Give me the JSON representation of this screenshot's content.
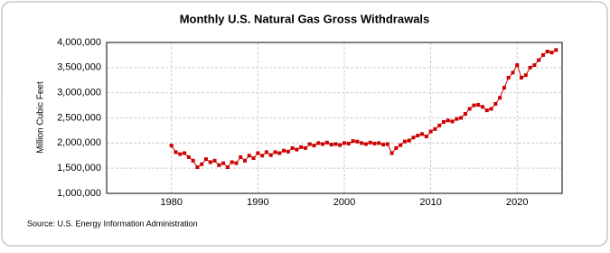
{
  "chart_data": {
    "type": "line",
    "title": "Monthly U.S. Natural Gas Gross Withdrawals",
    "y_label": "Million Cubic Feet",
    "source": "Source: U.S. Energy Information Administration",
    "x": [
      1980,
      1980.5,
      1981,
      1981.5,
      1982,
      1982.5,
      1983,
      1983.5,
      1984,
      1984.5,
      1985,
      1985.5,
      1986,
      1986.5,
      1987,
      1987.5,
      1988,
      1988.5,
      1989,
      1989.5,
      1990,
      1990.5,
      1991,
      1991.5,
      1992,
      1992.5,
      1993,
      1993.5,
      1994,
      1994.5,
      1995,
      1995.5,
      1996,
      1996.5,
      1997,
      1997.5,
      1998,
      1998.5,
      1999,
      1999.5,
      2000,
      2000.5,
      2001,
      2001.5,
      2002,
      2002.5,
      2003,
      2003.5,
      2004,
      2004.5,
      2005,
      2005.5,
      2006,
      2006.5,
      2007,
      2007.5,
      2008,
      2008.5,
      2009,
      2009.5,
      2010,
      2010.5,
      2011,
      2011.5,
      2012,
      2012.5,
      2013,
      2013.5,
      2014,
      2014.5,
      2015,
      2015.5,
      2016,
      2016.5,
      2017,
      2017.5,
      2018,
      2018.5,
      2019,
      2019.5,
      2020,
      2020.5,
      2021,
      2021.5,
      2022,
      2022.5,
      2023,
      2023.5,
      2024,
      2024.5
    ],
    "series": [
      {
        "name": "U.S. Natural Gas Gross Withdrawals",
        "color": "#cc0000",
        "values": [
          1950000,
          1820000,
          1780000,
          1800000,
          1720000,
          1650000,
          1520000,
          1580000,
          1680000,
          1620000,
          1650000,
          1560000,
          1600000,
          1520000,
          1620000,
          1600000,
          1720000,
          1650000,
          1750000,
          1700000,
          1800000,
          1750000,
          1820000,
          1760000,
          1820000,
          1800000,
          1850000,
          1830000,
          1900000,
          1870000,
          1920000,
          1900000,
          1980000,
          1950000,
          2000000,
          1980000,
          2010000,
          1970000,
          1980000,
          1960000,
          2000000,
          1990000,
          2040000,
          2030000,
          2000000,
          1980000,
          2010000,
          1990000,
          2000000,
          1970000,
          1980000,
          1800000,
          1900000,
          1960000,
          2030000,
          2050000,
          2110000,
          2150000,
          2180000,
          2130000,
          2230000,
          2280000,
          2350000,
          2420000,
          2450000,
          2430000,
          2480000,
          2500000,
          2580000,
          2680000,
          2750000,
          2760000,
          2720000,
          2650000,
          2680000,
          2780000,
          2900000,
          3100000,
          3300000,
          3400000,
          3550000,
          3300000,
          3350000,
          3500000,
          3550000,
          3650000,
          3750000,
          3820000,
          3800000,
          3850000
        ]
      }
    ],
    "xlim": [
      1972.5,
      2025.2
    ],
    "xticks": [
      1980,
      1990,
      2000,
      2010,
      2020
    ],
    "ylim": [
      1000000,
      4000000
    ],
    "yticks": [
      {
        "value": 1000000,
        "label": "1,000,000"
      },
      {
        "value": 1500000,
        "label": "1,500,000"
      },
      {
        "value": 2000000,
        "label": "2,000,000"
      },
      {
        "value": 2500000,
        "label": "2,500,000"
      },
      {
        "value": 3000000,
        "label": "3,000,000"
      },
      {
        "value": 3500000,
        "label": "3,500,000"
      },
      {
        "value": 4000000,
        "label": "4,000,000"
      }
    ],
    "grid": true
  }
}
